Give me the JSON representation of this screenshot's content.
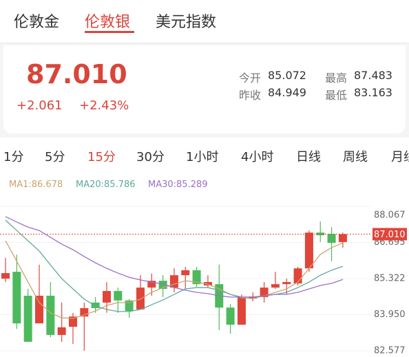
{
  "tabs": {
    "items": [
      "伦敦金",
      "伦敦银",
      "美元指数"
    ],
    "active": 1
  },
  "quote": {
    "price": "87.010",
    "change": "+2.061",
    "change_pct": "+2.43%",
    "stats": [
      {
        "label": "今开",
        "value": "85.072"
      },
      {
        "label": "最高",
        "value": "87.483"
      },
      {
        "label": "昨收",
        "value": "84.949"
      },
      {
        "label": "最低",
        "value": "83.163"
      }
    ]
  },
  "periods": {
    "items": [
      "1分",
      "5分",
      "15分",
      "30分",
      "1小时",
      "4小时",
      "日线",
      "周线",
      "月线"
    ],
    "active": 2
  },
  "chart_data": {
    "type": "candlestick",
    "up_color": "#e0453a",
    "down_color": "#4cba5c",
    "grid": true,
    "ylim": [
      82.577,
      88.067
    ],
    "yticks": [
      88.067,
      86.695,
      85.322,
      {
        "value": 83.95,
        "label": "83.950"
      },
      82.577
    ],
    "last_price": {
      "value": 87.01,
      "label": "87.010"
    },
    "ohlc": [
      [
        85.32,
        86.11,
        85.19,
        85.53
      ],
      [
        85.58,
        86.23,
        83.41,
        83.62
      ],
      [
        84.67,
        84.93,
        82.92,
        82.92
      ],
      [
        83.62,
        85.85,
        83.62,
        84.67
      ],
      [
        84.67,
        85.19,
        83.1,
        83.18
      ],
      [
        83.18,
        84.41,
        82.92,
        83.47
      ],
      [
        83.49,
        84.02,
        82.84,
        83.88
      ],
      [
        83.88,
        84.41,
        82.58,
        84.2
      ],
      [
        84.41,
        84.62,
        84.02,
        84.2
      ],
      [
        84.41,
        85.19,
        84.02,
        84.85
      ],
      [
        84.85,
        84.98,
        84.02,
        84.49
      ],
      [
        84.49,
        84.54,
        83.83,
        84.09
      ],
      [
        84.15,
        85.45,
        84.15,
        84.98
      ],
      [
        84.98,
        85.51,
        84.67,
        85.24
      ],
      [
        85.24,
        85.45,
        84.62,
        84.93
      ],
      [
        84.98,
        85.71,
        84.8,
        85.45
      ],
      [
        85.45,
        85.77,
        84.93,
        85.64
      ],
      [
        85.64,
        85.77,
        85.01,
        85.11
      ],
      [
        85.06,
        85.45,
        84.98,
        85.19
      ],
      [
        85.11,
        85.85,
        83.36,
        84.22
      ],
      [
        84.22,
        84.36,
        83.23,
        83.57
      ],
      [
        83.57,
        84.72,
        83.57,
        84.62
      ],
      [
        84.56,
        84.8,
        84.46,
        84.64
      ],
      [
        84.62,
        85.19,
        84.41,
        84.98
      ],
      [
        84.98,
        85.58,
        84.93,
        85.11
      ],
      [
        85.11,
        85.32,
        84.72,
        85.19
      ],
      [
        85.14,
        85.77,
        85.06,
        85.71
      ],
      [
        85.71,
        87.15,
        85.58,
        87.07
      ],
      [
        87.07,
        87.49,
        86.71,
        86.97
      ],
      [
        87.02,
        87.28,
        85.98,
        86.68
      ],
      [
        86.71,
        87.07,
        86.5,
        87.01
      ]
    ],
    "series": [
      {
        "name": "MA1:86.678",
        "color": "#c9a56e",
        "values": [
          86.76,
          85.98,
          85.19,
          84.41,
          84.02,
          83.83,
          83.81,
          83.94,
          84.09,
          84.3,
          84.41,
          84.41,
          84.54,
          84.8,
          84.98,
          85.11,
          85.24,
          85.19,
          85.11,
          84.93,
          84.72,
          84.59,
          84.56,
          84.67,
          84.8,
          84.93,
          85.19,
          85.71,
          86.24,
          86.5,
          86.68
        ]
      },
      {
        "name": "MA20:85.786",
        "color": "#5fa89a",
        "values": [
          87.54,
          87.15,
          86.76,
          86.37,
          85.84,
          85.32,
          84.93,
          84.54,
          84.28,
          84.15,
          84.07,
          84.07,
          84.15,
          84.33,
          84.51,
          84.72,
          84.93,
          84.98,
          84.98,
          84.88,
          84.72,
          84.62,
          84.62,
          84.67,
          84.72,
          84.8,
          84.98,
          85.19,
          85.45,
          85.64,
          85.79
        ]
      },
      {
        "name": "MA30:85.289",
        "color": "#9b6fc8",
        "values": [
          87.68,
          87.47,
          87.28,
          87.15,
          86.89,
          86.63,
          86.42,
          86.16,
          85.92,
          85.71,
          85.53,
          85.37,
          85.27,
          85.19,
          85.11,
          84.98,
          84.88,
          84.8,
          84.75,
          84.67,
          84.62,
          84.62,
          84.62,
          84.67,
          84.72,
          84.72,
          84.8,
          84.93,
          85.06,
          85.14,
          85.29
        ]
      }
    ]
  }
}
